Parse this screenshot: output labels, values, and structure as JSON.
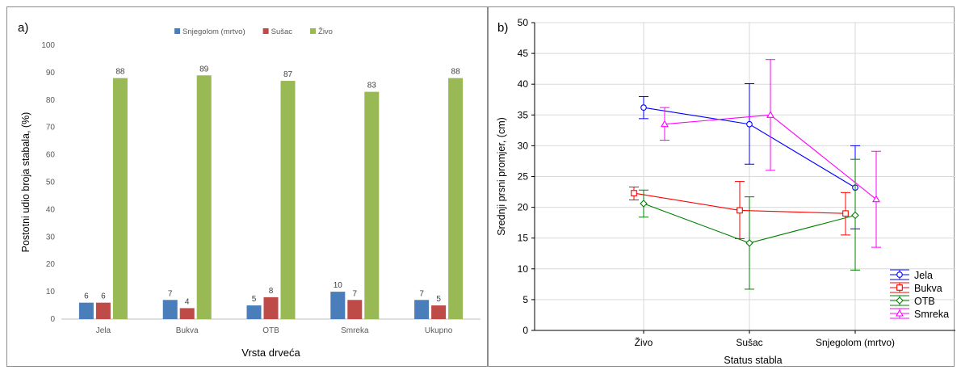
{
  "chart_data": [
    {
      "panel_label": "a)",
      "type": "bar",
      "categories": [
        "Jela",
        "Bukva",
        "OTB",
        "Smreka",
        "Ukupno"
      ],
      "series": [
        {
          "name": "Snjegolom (mrtvo)",
          "color": "#4a7ebb",
          "values": [
            6,
            7,
            5,
            10,
            7
          ]
        },
        {
          "name": "Sušac",
          "color": "#be4b48",
          "values": [
            6,
            4,
            8,
            7,
            5
          ]
        },
        {
          "name": "Živo",
          "color": "#98b954",
          "values": [
            88,
            89,
            87,
            83,
            88
          ]
        }
      ],
      "data_label_values": [
        [
          6,
          7,
          5,
          10,
          7
        ],
        [
          6,
          4,
          8,
          7,
          5
        ],
        [
          88,
          89,
          87,
          83,
          88
        ]
      ],
      "xlabel": "Vrsta drveća",
      "ylabel": "Postotni udio broja stabala, (%)",
      "ylim": [
        0,
        100
      ],
      "yticks": [
        0,
        10,
        20,
        30,
        40,
        50,
        60,
        70,
        80,
        90,
        100
      ],
      "legend_position": "top",
      "grid": false
    },
    {
      "panel_label": "b)",
      "type": "line",
      "categories": [
        "Živo",
        "Sušac",
        "Snjegolom (mrtvo)"
      ],
      "series": [
        {
          "name": "Jela",
          "color": "#0000ff",
          "marker": "circle",
          "values": [
            36.2,
            33.5,
            23.2
          ],
          "err_low": [
            34.4,
            27.0,
            16.5
          ],
          "err_high": [
            38.0,
            40.1,
            30.0
          ]
        },
        {
          "name": "Bukva",
          "color": "#ff0000",
          "marker": "square",
          "values": [
            22.3,
            19.5,
            19.0
          ],
          "err_low": [
            21.2,
            14.9,
            15.5
          ],
          "err_high": [
            23.3,
            24.2,
            22.4
          ]
        },
        {
          "name": "OTB",
          "color": "#008000",
          "marker": "diamond",
          "values": [
            20.6,
            14.2,
            18.7
          ],
          "err_low": [
            18.4,
            6.7,
            9.8
          ],
          "err_high": [
            22.8,
            21.7,
            27.8
          ]
        },
        {
          "name": "Smreka",
          "color": "#ff00ff",
          "marker": "triangle",
          "values": [
            33.5,
            35.0,
            21.3
          ],
          "err_low": [
            30.9,
            26.0,
            13.5
          ],
          "err_high": [
            36.2,
            44.0,
            29.1
          ]
        }
      ],
      "xlabel": "Status stabla",
      "ylabel": "Srednji prsni promjer, (cm)",
      "ylim": [
        0,
        50
      ],
      "yticks": [
        0,
        5,
        10,
        15,
        20,
        25,
        30,
        35,
        40,
        45,
        50
      ],
      "legend_position": "bottom-right",
      "grid": true
    }
  ]
}
